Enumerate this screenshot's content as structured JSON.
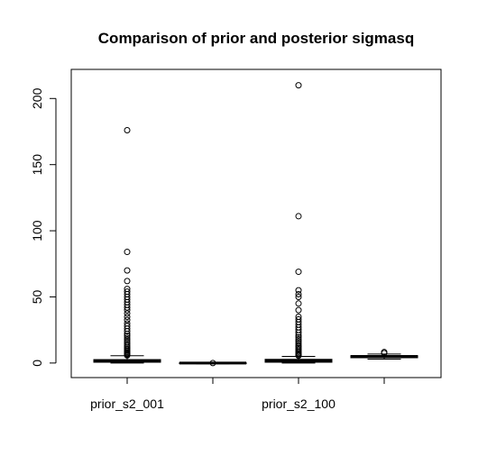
{
  "chart_data": {
    "type": "boxplot",
    "title": "Comparison of prior and posterior sigmasq",
    "xlabel": "",
    "ylabel": "",
    "ylim": [
      -11,
      222
    ],
    "yticks": [
      0,
      50,
      100,
      150,
      200
    ],
    "categories": [
      "prior_s2_001",
      "",
      "prior_s2_100",
      ""
    ],
    "tick_labels_shown": [
      "prior_s2_001",
      "",
      "prior_s2_100",
      ""
    ],
    "series": [
      {
        "stats": {
          "min": 0.0,
          "q1": 0.6,
          "median": 1.5,
          "q3": 2.6,
          "max": 5.5
        },
        "outliers": [
          5.8,
          6.2,
          6.8,
          7.5,
          8.3,
          9.2,
          10.1,
          11.0,
          12.0,
          13.2,
          14.5,
          16.0,
          17.5,
          19.0,
          20.5,
          22.0,
          24.0,
          26.0,
          28.0,
          30.0,
          32.5,
          35.0,
          37.5,
          40.0,
          42.0,
          44.0,
          46.0,
          48.0,
          50.0,
          52.0,
          54.0,
          56.0,
          62.0,
          70.0,
          84.0,
          176.0
        ]
      },
      {
        "stats": {
          "min": -0.5,
          "q1": -0.2,
          "median": 0.0,
          "q3": 0.2,
          "max": 0.4
        },
        "outliers": [
          0.0
        ]
      },
      {
        "stats": {
          "min": 0.0,
          "q1": 0.6,
          "median": 1.6,
          "q3": 2.8,
          "max": 5.0
        },
        "outliers": [
          5.5,
          6.0,
          6.8,
          7.5,
          8.5,
          9.5,
          10.5,
          11.5,
          12.5,
          13.5,
          15.0,
          16.5,
          18.0,
          19.5,
          21.0,
          23.0,
          25.0,
          27.0,
          29.0,
          31.0,
          33.0,
          35.0,
          40.0,
          45.0,
          50.0,
          52.0,
          55.0,
          69.0,
          111.0,
          210.0
        ]
      },
      {
        "stats": {
          "min": 3.0,
          "q1": 4.0,
          "median": 5.0,
          "q3": 5.6,
          "max": 6.8
        },
        "outliers": [
          7.5,
          8.3
        ]
      }
    ],
    "grid": false,
    "legend": "none"
  }
}
